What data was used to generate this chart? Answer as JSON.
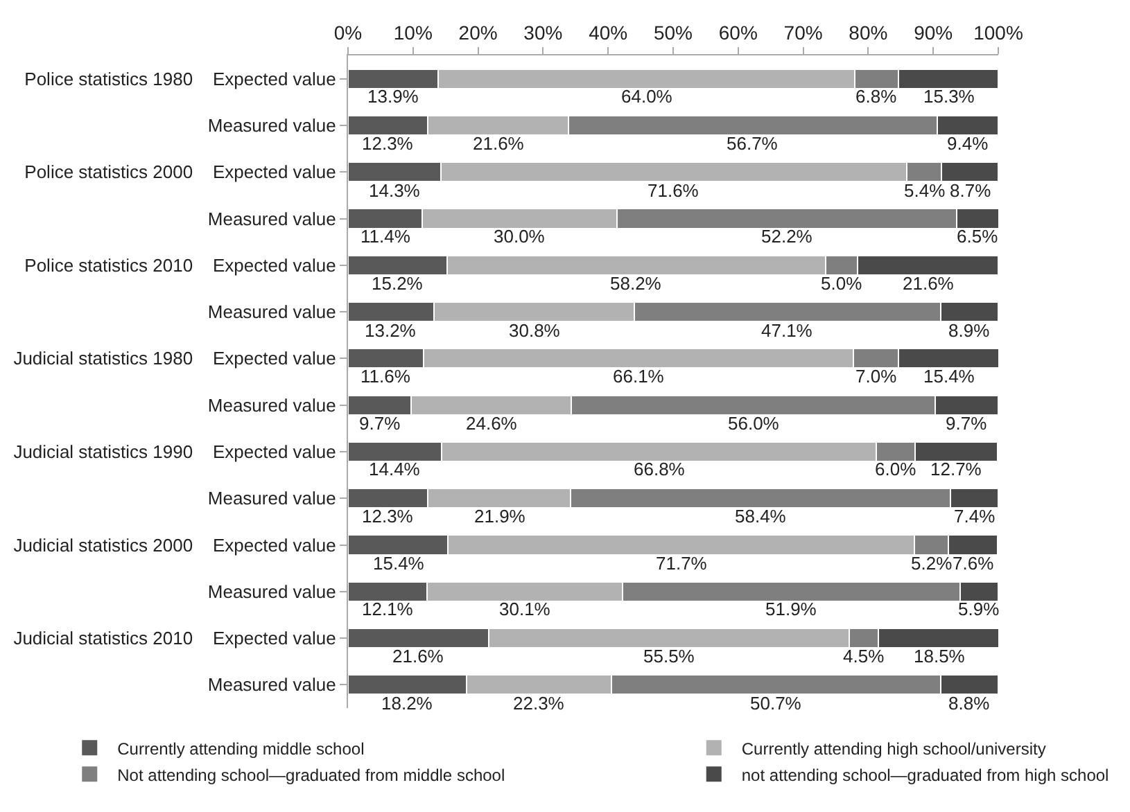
{
  "chart_data": {
    "type": "bar",
    "orientation": "horizontal",
    "stacked": true,
    "categories": [
      "Police statistics 1980    Expected value",
      "Measured value",
      "Police statistics 2000    Expected value",
      "Measured value",
      "Police statistics 2010    Expected value",
      "Measured value",
      "Judicial statistics 1980    Expected value",
      "Measured value",
      "Judicial statistics 1990    Expected value",
      "Measured value",
      "Judicial statistics 2000    Expected value",
      "Measured value",
      "Judicial statistics 2010    Expected value",
      "Measured value"
    ],
    "series": [
      {
        "name": "Currently attending middle school",
        "color": "#595959",
        "values": [
          13.9,
          12.3,
          14.3,
          11.4,
          15.2,
          13.2,
          11.6,
          9.7,
          14.4,
          12.3,
          15.4,
          12.1,
          21.6,
          18.2
        ],
        "value_labels": [
          "13.9%",
          "12.3%",
          "14.3%",
          "11.4%",
          "15.2%",
          "13.2%",
          "11.6%",
          "9.7%",
          "14.4%",
          "12.3%",
          "15.4%",
          "12.1%",
          "21.6%",
          "18.2%"
        ]
      },
      {
        "name": "Currently attending high school/university",
        "color": "#b2b2b2",
        "values": [
          64.0,
          21.6,
          71.6,
          30.0,
          58.2,
          30.8,
          66.1,
          24.6,
          66.8,
          21.9,
          71.7,
          30.1,
          55.5,
          22.3
        ],
        "value_labels": [
          "64.0%",
          "21.6%",
          "71.6%",
          "30.0%",
          "58.2%",
          "30.8%",
          "66.1%",
          "24.6%",
          "66.8%",
          "21.9%",
          "71.7%",
          "30.1%",
          "55.5%",
          "22.3%"
        ]
      },
      {
        "name": "Not attending school—graduated from middle school",
        "color": "#7f7f7f",
        "values": [
          6.8,
          56.7,
          5.4,
          52.2,
          5.0,
          47.1,
          7.0,
          56.0,
          6.0,
          58.4,
          5.2,
          51.9,
          4.5,
          50.7
        ],
        "value_labels": [
          "6.8%",
          "56.7%",
          "5.4%",
          "52.2%",
          "5.0%",
          "47.1%",
          "7.0%",
          "56.0%",
          "6.0%",
          "58.4%",
          "5.2%",
          "51.9%",
          "4.5%",
          "50.7%"
        ]
      },
      {
        "name": "not attending school—graduated from high school",
        "color": "#4a4a4a",
        "values": [
          15.3,
          9.4,
          8.7,
          6.5,
          21.6,
          8.9,
          15.4,
          9.7,
          12.7,
          7.4,
          7.6,
          5.9,
          18.5,
          8.8
        ],
        "value_labels": [
          "15.3%",
          "9.4%",
          "8.7%",
          "6.5%",
          "21.6%",
          "8.9%",
          "15.4%",
          "9.7%",
          "12.7%",
          "7.4%",
          "7.6%",
          "5.9%",
          "18.5%",
          "8.8%"
        ]
      }
    ],
    "xlim": [
      0,
      100
    ],
    "xticks": [
      {
        "value": 0,
        "label": "0%"
      },
      {
        "value": 10,
        "label": "10%"
      },
      {
        "value": 20,
        "label": "20%"
      },
      {
        "value": 30,
        "label": "30%"
      },
      {
        "value": 40,
        "label": "40%"
      },
      {
        "value": 50,
        "label": "50%"
      },
      {
        "value": 60,
        "label": "60%"
      },
      {
        "value": 70,
        "label": "70%"
      },
      {
        "value": 80,
        "label": "80%"
      },
      {
        "value": 90,
        "label": "90%"
      },
      {
        "value": 100,
        "label": "100%"
      }
    ],
    "legend": "bottom"
  }
}
